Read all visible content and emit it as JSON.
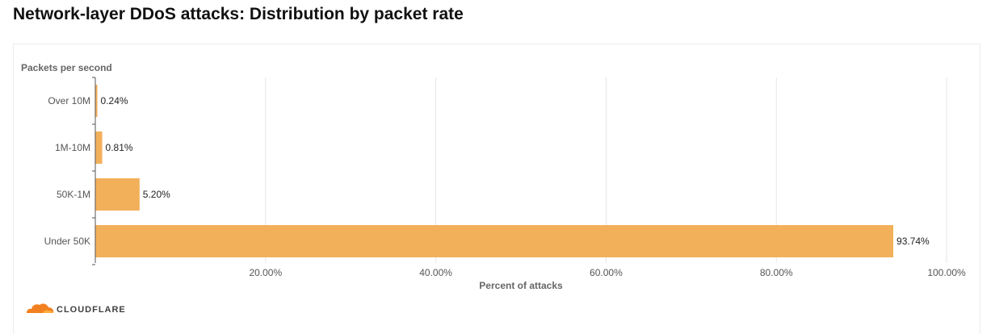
{
  "title": "Network-layer DDoS attacks: Distribution by packet rate",
  "brand": {
    "name": "CLOUDFLARE",
    "color": "#f38020",
    "icon": "cloudflare-cloud-icon"
  },
  "chart_data": {
    "type": "bar",
    "orientation": "horizontal",
    "categories": [
      "Over 10M",
      "1M-10M",
      "50K-1M",
      "Under 50K"
    ],
    "values": [
      0.24,
      0.81,
      5.2,
      93.74
    ],
    "value_labels": [
      "0.24%",
      "0.81%",
      "5.20%",
      "93.74%"
    ],
    "xlabel": "Percent of attacks",
    "ylabel": "Packets per second",
    "xlim": [
      0,
      100
    ],
    "xticks": [
      20,
      40,
      60,
      80,
      100
    ],
    "xtick_labels": [
      "20.00%",
      "40.00%",
      "60.00%",
      "80.00%",
      "100.00%"
    ],
    "grid": true,
    "bar_color": "#f2b05a"
  }
}
